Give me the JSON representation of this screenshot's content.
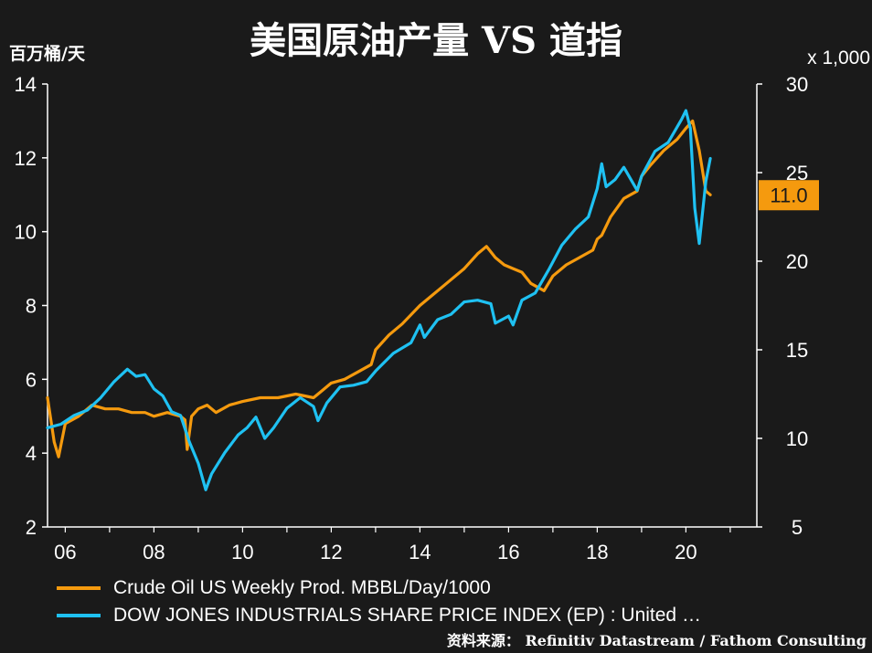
{
  "title": "美国原油产量 VS 道指",
  "left_axis_unit": "百万桶/天",
  "right_axis_unit": "x 1,000",
  "source": "资料来源： Refinitiv Datastream / Fathom Consulting",
  "colors": {
    "background": "#1a1a1a",
    "oil": "#f59a0e",
    "dow": "#1fc1f2",
    "axis": "#ffffff"
  },
  "chart_data": {
    "type": "line",
    "x_ticks": [
      "06",
      "08",
      "10",
      "12",
      "14",
      "16",
      "18",
      "20"
    ],
    "x_tick_values": [
      2006,
      2008,
      2010,
      2012,
      2014,
      2016,
      2018,
      2020
    ],
    "xlim": [
      2005.6,
      2021.6
    ],
    "left_axis": {
      "ylim": [
        2,
        14
      ],
      "ticks": [
        "2",
        "4",
        "6",
        "8",
        "10",
        "12",
        "14"
      ]
    },
    "right_axis": {
      "ylim": [
        5,
        30
      ],
      "ticks": [
        "5",
        "10",
        "15",
        "20",
        "25",
        "30"
      ]
    },
    "latest_label": "11.0",
    "series": [
      {
        "name": "Crude Oil US Weekly Prod. MBBL/Day/1000",
        "axis": "left",
        "x": [
          2005.6,
          2005.75,
          2005.85,
          2006.0,
          2006.3,
          2006.6,
          2006.9,
          2007.2,
          2007.5,
          2007.8,
          2008.0,
          2008.3,
          2008.6,
          2008.7,
          2008.75,
          2008.85,
          2009.0,
          2009.2,
          2009.4,
          2009.7,
          2010.0,
          2010.4,
          2010.8,
          2011.2,
          2011.6,
          2011.8,
          2012.0,
          2012.3,
          2012.6,
          2012.9,
          2013.0,
          2013.3,
          2013.6,
          2014.0,
          2014.3,
          2014.6,
          2015.0,
          2015.3,
          2015.5,
          2015.7,
          2015.9,
          2016.1,
          2016.3,
          2016.5,
          2016.8,
          2017.0,
          2017.3,
          2017.6,
          2017.9,
          2018.0,
          2018.1,
          2018.3,
          2018.6,
          2018.9,
          2019.0,
          2019.2,
          2019.5,
          2019.8,
          2020.0,
          2020.15,
          2020.3,
          2020.45,
          2020.55
        ],
        "values": [
          5.5,
          4.3,
          3.9,
          4.8,
          5.0,
          5.3,
          5.2,
          5.2,
          5.1,
          5.1,
          5.0,
          5.1,
          5.0,
          4.9,
          4.1,
          5.0,
          5.2,
          5.3,
          5.1,
          5.3,
          5.4,
          5.5,
          5.5,
          5.6,
          5.5,
          5.7,
          5.9,
          6.0,
          6.2,
          6.4,
          6.8,
          7.2,
          7.5,
          8.0,
          8.3,
          8.6,
          9.0,
          9.4,
          9.6,
          9.3,
          9.1,
          9.0,
          8.9,
          8.6,
          8.4,
          8.8,
          9.1,
          9.3,
          9.5,
          9.8,
          9.9,
          10.4,
          10.9,
          11.1,
          11.5,
          11.8,
          12.2,
          12.5,
          12.8,
          13.0,
          12.2,
          11.1,
          11.0
        ]
      },
      {
        "name": "DOW JONES INDUSTRIALS SHARE PRICE INDEX (EP) : United …",
        "axis": "right",
        "x": [
          2005.6,
          2005.9,
          2006.2,
          2006.5,
          2006.8,
          2007.1,
          2007.4,
          2007.6,
          2007.8,
          2008.0,
          2008.2,
          2008.4,
          2008.6,
          2008.8,
          2009.0,
          2009.17,
          2009.3,
          2009.6,
          2009.9,
          2010.1,
          2010.3,
          2010.5,
          2010.7,
          2011.0,
          2011.3,
          2011.6,
          2011.7,
          2011.9,
          2012.2,
          2012.5,
          2012.8,
          2013.0,
          2013.4,
          2013.8,
          2014.0,
          2014.1,
          2014.4,
          2014.7,
          2015.0,
          2015.3,
          2015.6,
          2015.7,
          2016.0,
          2016.1,
          2016.3,
          2016.6,
          2016.9,
          2017.2,
          2017.5,
          2017.8,
          2018.0,
          2018.1,
          2018.2,
          2018.4,
          2018.6,
          2018.9,
          2019.0,
          2019.3,
          2019.6,
          2019.9,
          2020.0,
          2020.1,
          2020.2,
          2020.3,
          2020.45,
          2020.55
        ],
        "values": [
          10.6,
          10.8,
          11.3,
          11.6,
          12.3,
          13.2,
          13.9,
          13.5,
          13.6,
          12.8,
          12.4,
          11.5,
          11.3,
          9.8,
          8.6,
          7.1,
          8.0,
          9.2,
          10.2,
          10.6,
          11.2,
          10.0,
          10.6,
          11.7,
          12.3,
          11.8,
          11.0,
          12.0,
          12.9,
          13.0,
          13.2,
          13.8,
          14.8,
          15.4,
          16.4,
          15.7,
          16.7,
          17.0,
          17.7,
          17.8,
          17.6,
          16.5,
          16.9,
          16.4,
          17.8,
          18.2,
          19.5,
          20.9,
          21.8,
          22.5,
          24.1,
          25.5,
          24.2,
          24.6,
          25.3,
          24.0,
          24.8,
          26.2,
          26.7,
          28.0,
          28.5,
          27.5,
          23.0,
          21.0,
          24.5,
          25.8
        ]
      }
    ],
    "grid": false,
    "legend_position": "bottom-left"
  }
}
